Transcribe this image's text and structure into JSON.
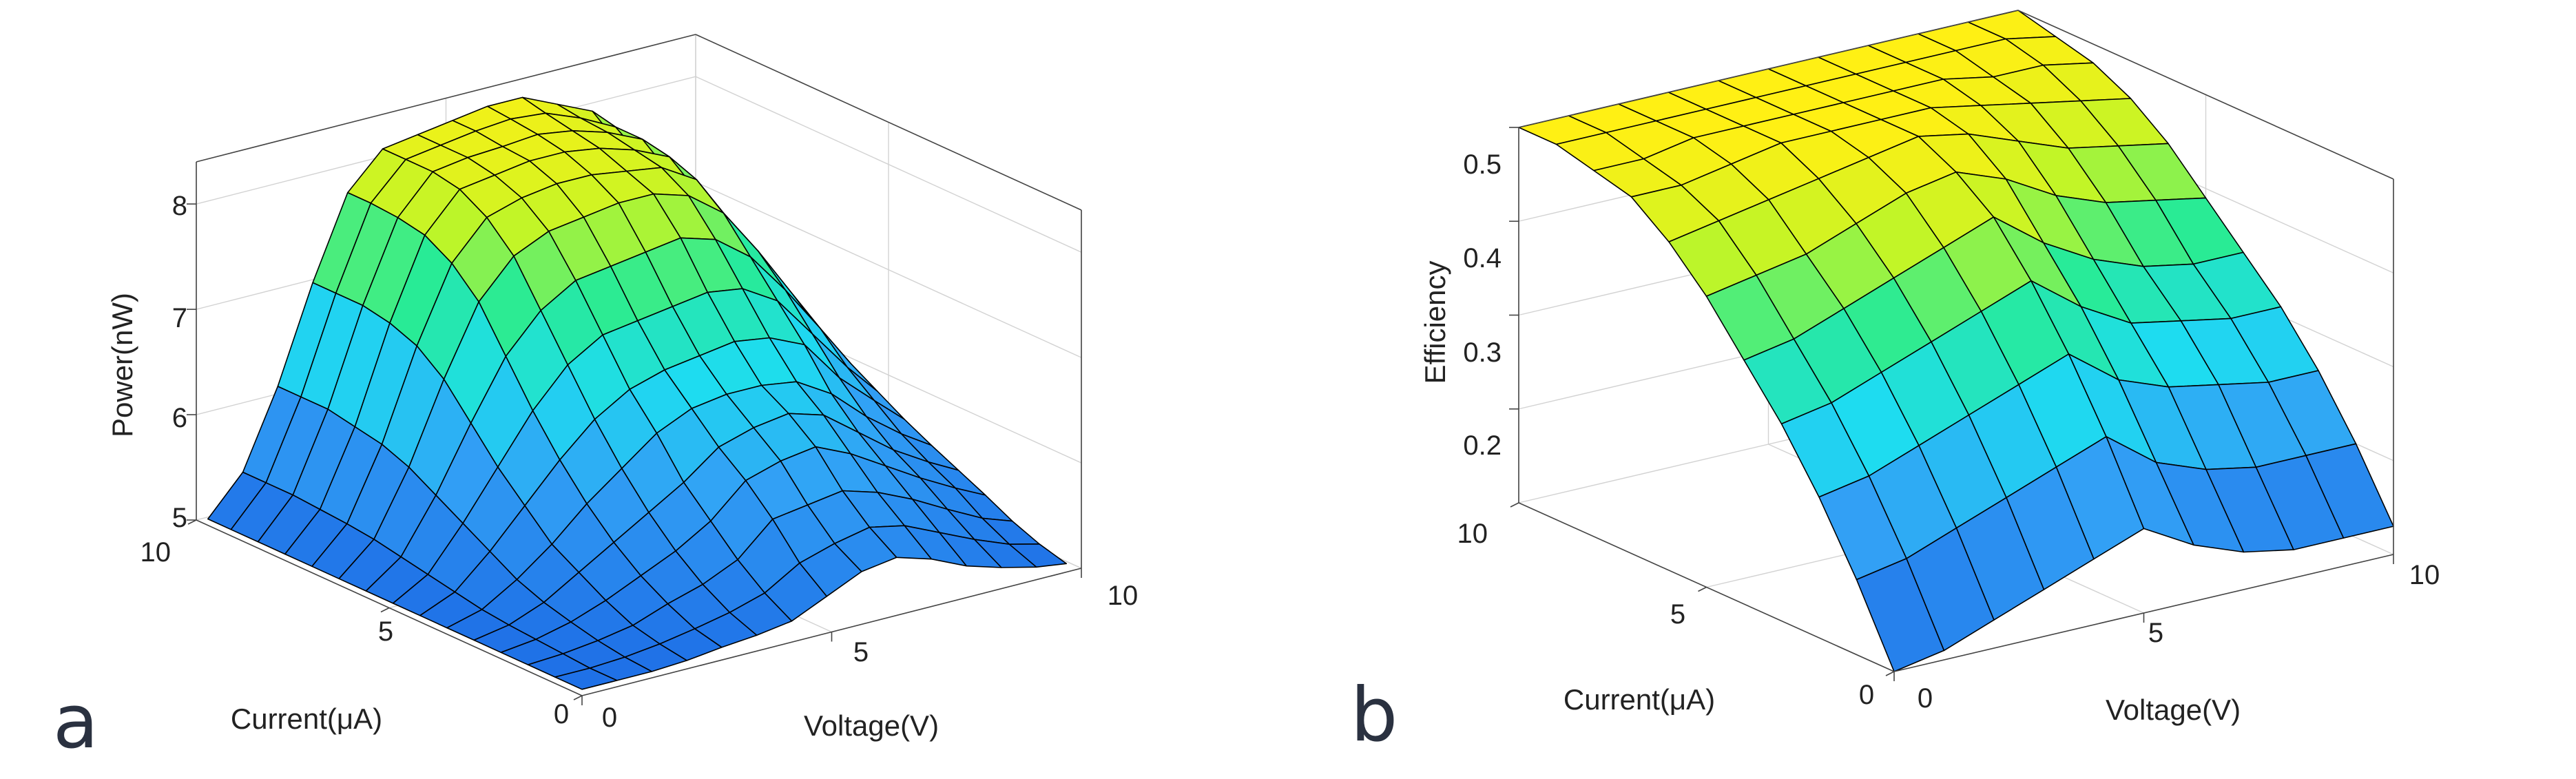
{
  "chart_data": [
    {
      "type": "surface",
      "panel_label": "a",
      "xlabel": "Voltage(V)",
      "ylabel": "Current(μA)",
      "zlabel": "Power(nW)",
      "xlim": [
        0,
        10
      ],
      "ylim": [
        0,
        10
      ],
      "zlim": [
        5,
        8.4
      ],
      "x_ticks": [
        "0",
        "5",
        "10"
      ],
      "y_ticks": [
        "0",
        "5",
        "10"
      ],
      "z_ticks": [
        "5",
        "6",
        "7",
        "8"
      ],
      "x_values": [
        0,
        0.7,
        1.4,
        2.1,
        2.8,
        3.5,
        4.2,
        4.9,
        5.6,
        6.3,
        7.0,
        7.7,
        8.4,
        9.1,
        9.7
      ],
      "y_values": [
        0,
        0.7,
        1.4,
        2.1,
        2.8,
        3.5,
        4.2,
        4.9,
        5.6,
        6.3,
        7.0,
        7.7,
        8.4,
        9.1,
        9.7
      ],
      "z_values": [
        [
          5.06,
          5.06,
          5.06,
          5.08,
          5.12,
          5.15,
          5.2,
          5.35,
          5.5,
          5.55,
          5.45,
          5.3,
          5.2,
          5.12,
          5.08
        ],
        [
          5.06,
          5.06,
          5.08,
          5.12,
          5.18,
          5.25,
          5.35,
          5.55,
          5.65,
          5.72,
          5.65,
          5.5,
          5.35,
          5.22,
          5.15
        ],
        [
          5.06,
          5.08,
          5.12,
          5.18,
          5.3,
          5.4,
          5.55,
          5.85,
          5.9,
          5.95,
          5.85,
          5.7,
          5.52,
          5.35,
          5.25
        ],
        [
          5.06,
          5.1,
          5.18,
          5.3,
          5.45,
          5.6,
          5.8,
          6.1,
          6.2,
          6.25,
          6.1,
          5.9,
          5.7,
          5.52,
          5.38
        ],
        [
          5.06,
          5.12,
          5.25,
          5.45,
          5.65,
          5.85,
          6.05,
          6.3,
          6.4,
          6.45,
          6.35,
          6.1,
          5.85,
          5.65,
          5.5
        ],
        [
          5.06,
          5.15,
          5.35,
          5.6,
          5.9,
          6.15,
          6.4,
          6.55,
          6.6,
          6.6,
          6.55,
          6.35,
          6.05,
          5.8,
          5.62
        ],
        [
          5.06,
          5.2,
          5.5,
          5.85,
          6.2,
          6.5,
          6.7,
          6.8,
          6.85,
          6.9,
          6.85,
          6.7,
          6.3,
          6.0,
          5.75
        ],
        [
          5.06,
          5.25,
          5.65,
          6.1,
          6.55,
          6.9,
          7.1,
          7.15,
          7.2,
          7.25,
          7.2,
          7.0,
          6.6,
          6.2,
          5.9
        ],
        [
          5.06,
          5.3,
          5.8,
          6.4,
          6.95,
          7.3,
          7.5,
          7.55,
          7.6,
          7.65,
          7.55,
          7.3,
          6.9,
          6.45,
          6.05
        ],
        [
          5.06,
          5.35,
          5.95,
          6.7,
          7.35,
          7.7,
          7.85,
          7.9,
          7.95,
          7.95,
          7.85,
          7.6,
          7.15,
          6.65,
          6.2
        ],
        [
          5.06,
          5.38,
          6.05,
          6.9,
          7.6,
          7.95,
          8.05,
          8.1,
          8.1,
          8.05,
          8.0,
          7.8,
          7.3,
          6.8,
          6.3
        ],
        [
          5.06,
          5.4,
          6.1,
          7.0,
          7.75,
          8.1,
          8.15,
          8.2,
          8.2,
          8.15,
          8.05,
          7.9,
          7.4,
          6.88,
          6.35
        ],
        [
          5.06,
          5.42,
          6.15,
          7.05,
          7.8,
          8.15,
          8.2,
          8.22,
          8.25,
          8.2,
          8.1,
          7.95,
          7.45,
          6.9,
          6.4
        ],
        [
          5.06,
          5.42,
          6.15,
          7.05,
          7.82,
          8.15,
          8.2,
          8.25,
          8.28,
          8.25,
          8.12,
          7.95,
          7.48,
          6.92,
          6.42
        ],
        [
          5.06,
          5.42,
          6.15,
          7.05,
          7.82,
          8.15,
          8.2,
          8.25,
          8.3,
          8.3,
          8.15,
          8.0,
          7.5,
          6.95,
          6.45
        ]
      ]
    },
    {
      "type": "surface",
      "panel_label": "b",
      "xlabel": "Voltage(V)",
      "ylabel": "Current(μA)",
      "zlabel": "Efficiency",
      "xlim": [
        0,
        10
      ],
      "ylim": [
        0,
        10
      ],
      "zlim": [
        0.1,
        0.5
      ],
      "x_ticks": [
        "0",
        "5",
        "10"
      ],
      "y_ticks": [
        "0",
        "5",
        "10"
      ],
      "z_ticks": [
        "0.2",
        "0.3",
        "0.4",
        "0.5"
      ],
      "x_values": [
        0,
        1,
        2,
        3,
        4,
        5,
        6,
        7,
        8,
        9,
        10
      ],
      "y_values": [
        0,
        1,
        2,
        3,
        4,
        5,
        6,
        7,
        8,
        9,
        10
      ],
      "z_values": [
        [
          0.1,
          0.11,
          0.13,
          0.15,
          0.17,
          0.19,
          0.16,
          0.14,
          0.13,
          0.13,
          0.13
        ],
        [
          0.18,
          0.19,
          0.21,
          0.23,
          0.25,
          0.27,
          0.23,
          0.21,
          0.2,
          0.2,
          0.2
        ],
        [
          0.25,
          0.26,
          0.28,
          0.3,
          0.32,
          0.34,
          0.3,
          0.28,
          0.27,
          0.26,
          0.26
        ],
        [
          0.31,
          0.32,
          0.34,
          0.36,
          0.38,
          0.4,
          0.36,
          0.33,
          0.32,
          0.31,
          0.31
        ],
        [
          0.36,
          0.37,
          0.39,
          0.41,
          0.43,
          0.45,
          0.41,
          0.38,
          0.36,
          0.35,
          0.35
        ],
        [
          0.41,
          0.42,
          0.43,
          0.45,
          0.47,
          0.48,
          0.46,
          0.43,
          0.41,
          0.4,
          0.39
        ],
        [
          0.45,
          0.46,
          0.47,
          0.48,
          0.49,
          0.5,
          0.49,
          0.47,
          0.45,
          0.44,
          0.43
        ],
        [
          0.48,
          0.48,
          0.49,
          0.5,
          0.5,
          0.5,
          0.5,
          0.49,
          0.48,
          0.47,
          0.46
        ],
        [
          0.49,
          0.49,
          0.5,
          0.5,
          0.5,
          0.5,
          0.5,
          0.5,
          0.49,
          0.49,
          0.48
        ],
        [
          0.5,
          0.5,
          0.5,
          0.5,
          0.5,
          0.5,
          0.5,
          0.5,
          0.5,
          0.5,
          0.49
        ],
        [
          0.5,
          0.5,
          0.5,
          0.5,
          0.5,
          0.5,
          0.5,
          0.5,
          0.5,
          0.5,
          0.5
        ]
      ]
    }
  ]
}
